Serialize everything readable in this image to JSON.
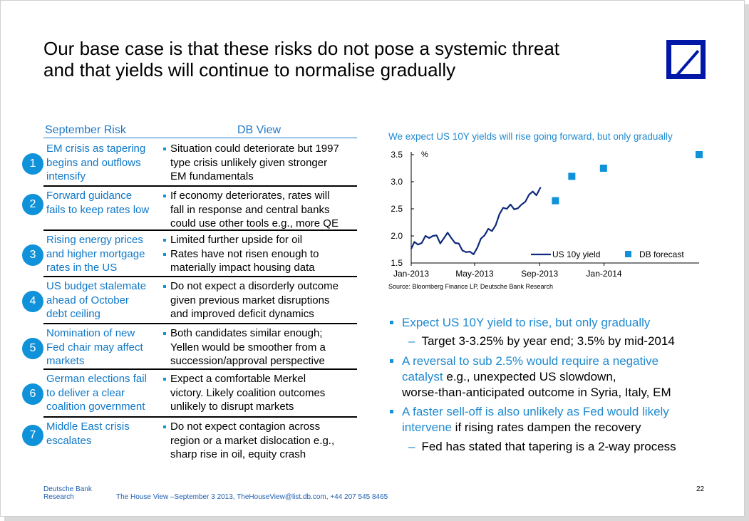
{
  "title": {
    "line1": "Our base case is that these risks do not pose a systemic threat",
    "line2": "and that yields will continue to normalise gradually"
  },
  "table": {
    "headers": {
      "risk": "September Risk",
      "view": "DB View"
    },
    "rows": [
      {
        "num": "1",
        "risk": [
          "EM crisis as tapering",
          "begins and outflows",
          "intensify"
        ],
        "view": [
          {
            "t": "Situation could deteriorate but 1997",
            "b": true
          },
          {
            "t": "type crisis unlikely given stronger",
            "b": false
          },
          {
            "t": "EM fundamentals",
            "b": false
          }
        ]
      },
      {
        "num": "2",
        "risk": [
          "Forward guidance",
          "fails to keep rates low"
        ],
        "view": [
          {
            "t": "If economy deteriorates, rates will",
            "b": true
          },
          {
            "t": "fall in response and central banks",
            "b": false
          },
          {
            "t": "could use other tools e.g., more QE",
            "b": false
          }
        ]
      },
      {
        "num": "3",
        "risk": [
          "Rising energy prices",
          "and higher mortgage",
          "rates in the US"
        ],
        "view": [
          {
            "t": "Limited further upside for oil",
            "b": true
          },
          {
            "t": "Rates have not risen enough to",
            "b": true
          },
          {
            "t": "materially impact housing data",
            "b": false
          }
        ]
      },
      {
        "num": "4",
        "risk": [
          "US budget stalemate",
          "ahead of October",
          "debt ceiling"
        ],
        "view": [
          {
            "t": "Do not expect a disorderly outcome",
            "b": true
          },
          {
            "t": "given previous market disruptions",
            "b": false
          },
          {
            "t": "and improved deficit dynamics",
            "b": false
          }
        ]
      },
      {
        "num": "5",
        "risk": [
          "Nomination of new",
          "Fed chair may affect",
          "markets"
        ],
        "view": [
          {
            "t": "Both candidates similar enough;",
            "b": true
          },
          {
            "t": "Yellen would be smoother from a",
            "b": false
          },
          {
            "t": "succession/approval perspective",
            "b": false
          }
        ]
      },
      {
        "num": "6",
        "risk": [
          "German elections fail",
          "to deliver a clear",
          "coalition government"
        ],
        "view": [
          {
            "t": "Expect a comfortable Merkel",
            "b": true
          },
          {
            "t": "victory. Likely coalition outcomes",
            "b": false
          },
          {
            "t": "unlikely to disrupt markets",
            "b": false
          }
        ]
      },
      {
        "num": "7",
        "risk": [
          "Middle East crisis",
          "escalates"
        ],
        "view": [
          {
            "t": "Do not expect contagion across",
            "b": true
          },
          {
            "t": "region or a market dislocation e.g.,",
            "b": false
          },
          {
            "t": "sharp rise in oil, equity crash",
            "b": false
          }
        ]
      }
    ]
  },
  "chart_title": "We expect US 10Y yields will rise going forward, but only gradually",
  "chart_data": {
    "type": "line",
    "ylabel": "%",
    "ylim": [
      1.5,
      3.5
    ],
    "yticks": [
      "1.5",
      "2.0",
      "2.5",
      "3.0",
      "3.5"
    ],
    "xticks": [
      {
        "label": "Jan-2013",
        "x": "2013-01-01"
      },
      {
        "label": "May-2013",
        "x": "2013-05-01"
      },
      {
        "label": "Sep-2013",
        "x": "2013-09-01"
      },
      {
        "label": "Jan-2014",
        "x": "2014-01-01"
      }
    ],
    "series": [
      {
        "name": "US 10y yield",
        "color": "#0d2a7a",
        "x": [
          "2013-01-01",
          "2013-01-07",
          "2013-01-14",
          "2013-01-21",
          "2013-01-28",
          "2013-02-04",
          "2013-02-11",
          "2013-02-18",
          "2013-02-25",
          "2013-03-04",
          "2013-03-11",
          "2013-03-18",
          "2013-03-25",
          "2013-04-01",
          "2013-04-08",
          "2013-04-15",
          "2013-04-22",
          "2013-04-29",
          "2013-05-06",
          "2013-05-13",
          "2013-05-20",
          "2013-05-27",
          "2013-06-03",
          "2013-06-10",
          "2013-06-17",
          "2013-06-24",
          "2013-07-01",
          "2013-07-08",
          "2013-07-15",
          "2013-07-22",
          "2013-07-29",
          "2013-08-05",
          "2013-08-12",
          "2013-08-19",
          "2013-08-26",
          "2013-09-03"
        ],
        "y": [
          1.76,
          1.89,
          1.84,
          1.87,
          2.0,
          1.96,
          2.0,
          2.01,
          1.86,
          1.96,
          2.06,
          1.96,
          1.87,
          1.86,
          1.73,
          1.7,
          1.71,
          1.66,
          1.78,
          1.95,
          2.01,
          2.13,
          2.09,
          2.2,
          2.4,
          2.52,
          2.5,
          2.58,
          2.49,
          2.51,
          2.58,
          2.63,
          2.76,
          2.82,
          2.75,
          2.9
        ]
      },
      {
        "name": "DB forecast",
        "color": "#0f92d9",
        "x": [
          "2013-10-01",
          "2013-11-01",
          "2013-12-31",
          "2014-06-30"
        ],
        "y": [
          2.65,
          3.1,
          3.25,
          3.5
        ]
      }
    ],
    "grid": false,
    "legend": "bottom-right"
  },
  "source": "Source: Bloomberg Finance LP,  Deutsche Bank Research",
  "bullets": {
    "b1": "Expect US 10Y yield to rise, but only gradually",
    "s1": "Target 3-3.25% by year end; 3.5% by mid-2014",
    "b2_blue1": "A reversal to sub 2.5% would require a negative",
    "b2_blue2": "catalyst",
    "b2_black2": " e.g., unexpected US slowdown,",
    "b2_black3": "worse-than-anticipated outcome in Syria, Italy, EM",
    "b3_blue1": "A faster sell-off is also unlikely as Fed would likely",
    "b3_blue2": "intervene",
    "b3_black2": " if rising rates dampen the recovery",
    "s3": "Fed has stated that tapering is a 2-way process",
    "dash": "–"
  },
  "footer": {
    "brand1": "Deutsche Bank",
    "brand2": "Research",
    "text": "The House View –September 3 2013, TheHouseView@list.db.com, +44 207 545 8465",
    "page": "22"
  }
}
